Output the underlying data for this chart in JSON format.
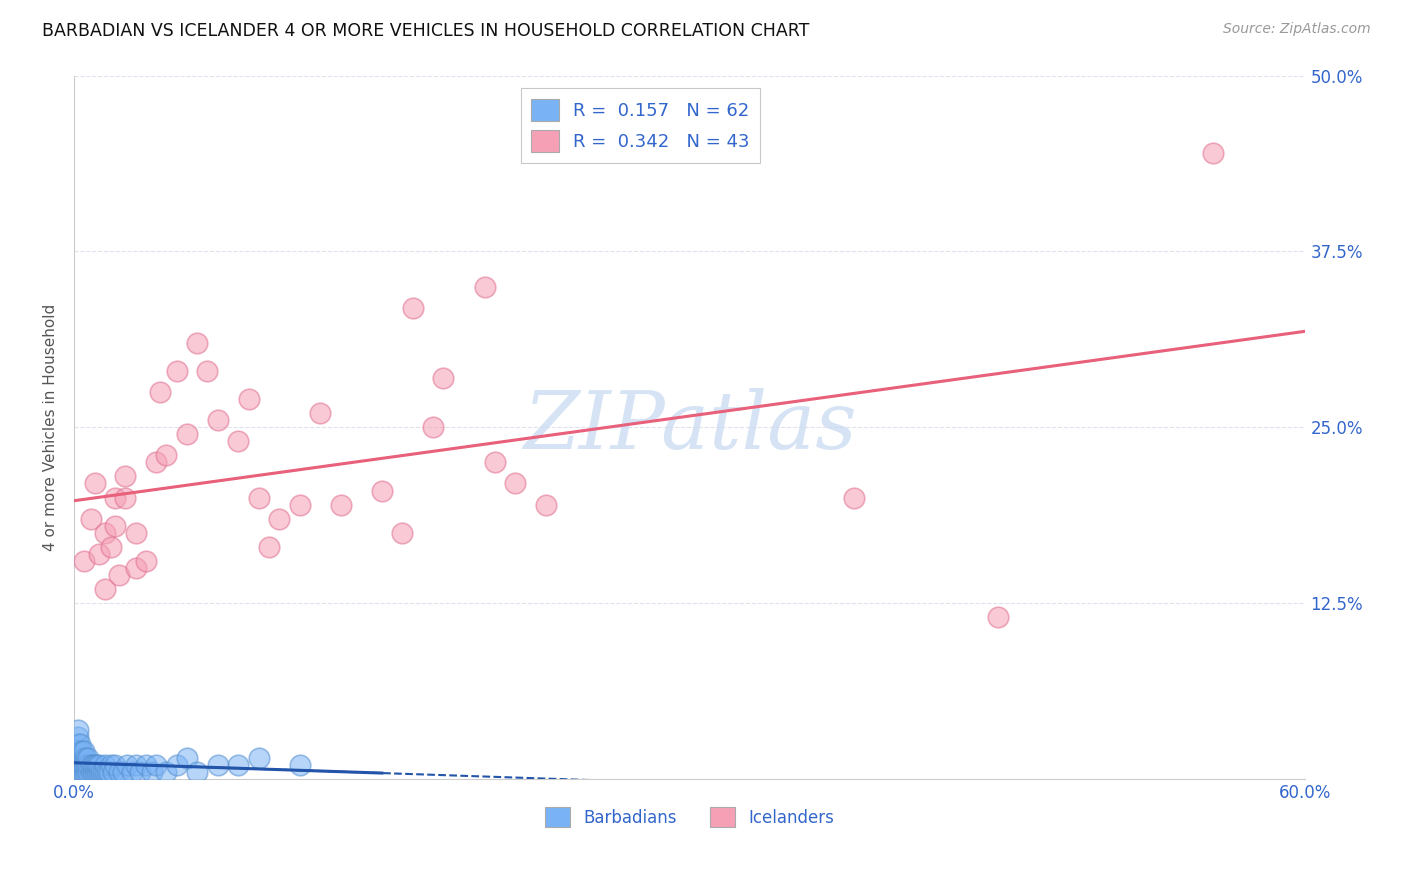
{
  "title": "BARBADIAN VS ICELANDER 4 OR MORE VEHICLES IN HOUSEHOLD CORRELATION CHART",
  "source": "Source: ZipAtlas.com",
  "ylabel": "4 or more Vehicles in Household",
  "xlim": [
    0.0,
    0.6
  ],
  "ylim": [
    0.0,
    0.5
  ],
  "xtick_vals": [
    0.0,
    0.1,
    0.2,
    0.3,
    0.4,
    0.5,
    0.6
  ],
  "xticklabels": [
    "0.0%",
    "",
    "",
    "",
    "",
    "",
    "60.0%"
  ],
  "ytick_vals": [
    0.0,
    0.125,
    0.25,
    0.375,
    0.5
  ],
  "yticklabels_right": [
    "",
    "12.5%",
    "25.0%",
    "37.5%",
    "50.0%"
  ],
  "barbadian_color": "#7ab3f5",
  "barbadian_edge": "#5590d0",
  "icelander_color": "#f5a0b5",
  "icelander_edge": "#e07090",
  "barbadian_line_color": "#2255aa",
  "icelander_line_color": "#e8607a",
  "tick_label_color": "#3366cc",
  "ylabel_color": "#555555",
  "title_color": "#111111",
  "source_color": "#999999",
  "watermark_color": "#c5d8f0",
  "grid_color": "#e0e0ee",
  "legend_label1": "R =  0.157   N = 62",
  "legend_label2": "R =  0.342   N = 43",
  "barb_x": [
    0.001,
    0.001,
    0.001,
    0.002,
    0.002,
    0.002,
    0.002,
    0.003,
    0.003,
    0.003,
    0.003,
    0.003,
    0.004,
    0.004,
    0.004,
    0.004,
    0.005,
    0.005,
    0.005,
    0.005,
    0.006,
    0.006,
    0.006,
    0.007,
    0.007,
    0.007,
    0.008,
    0.008,
    0.009,
    0.009,
    0.01,
    0.01,
    0.011,
    0.011,
    0.012,
    0.012,
    0.013,
    0.014,
    0.015,
    0.015,
    0.016,
    0.017,
    0.018,
    0.019,
    0.02,
    0.022,
    0.024,
    0.026,
    0.028,
    0.03,
    0.032,
    0.035,
    0.038,
    0.04,
    0.045,
    0.05,
    0.055,
    0.06,
    0.07,
    0.08,
    0.09,
    0.11
  ],
  "barb_y": [
    0.005,
    0.01,
    0.015,
    0.02,
    0.025,
    0.03,
    0.035,
    0.005,
    0.01,
    0.015,
    0.02,
    0.025,
    0.005,
    0.01,
    0.015,
    0.02,
    0.005,
    0.01,
    0.015,
    0.02,
    0.005,
    0.01,
    0.015,
    0.005,
    0.01,
    0.015,
    0.005,
    0.01,
    0.005,
    0.01,
    0.005,
    0.01,
    0.005,
    0.01,
    0.005,
    0.01,
    0.005,
    0.005,
    0.005,
    0.01,
    0.005,
    0.005,
    0.01,
    0.005,
    0.01,
    0.005,
    0.005,
    0.01,
    0.005,
    0.01,
    0.005,
    0.01,
    0.005,
    0.01,
    0.005,
    0.01,
    0.015,
    0.005,
    0.01,
    0.01,
    0.015,
    0.01
  ],
  "icel_x": [
    0.005,
    0.008,
    0.01,
    0.012,
    0.015,
    0.015,
    0.018,
    0.02,
    0.02,
    0.022,
    0.025,
    0.025,
    0.03,
    0.03,
    0.035,
    0.04,
    0.042,
    0.045,
    0.05,
    0.055,
    0.06,
    0.065,
    0.07,
    0.08,
    0.085,
    0.09,
    0.095,
    0.1,
    0.11,
    0.12,
    0.13,
    0.15,
    0.16,
    0.165,
    0.175,
    0.18,
    0.2,
    0.205,
    0.215,
    0.23,
    0.38,
    0.45,
    0.555
  ],
  "icel_y": [
    0.155,
    0.185,
    0.21,
    0.16,
    0.175,
    0.135,
    0.165,
    0.2,
    0.18,
    0.145,
    0.2,
    0.215,
    0.175,
    0.15,
    0.155,
    0.225,
    0.275,
    0.23,
    0.29,
    0.245,
    0.31,
    0.29,
    0.255,
    0.24,
    0.27,
    0.2,
    0.165,
    0.185,
    0.195,
    0.26,
    0.195,
    0.205,
    0.175,
    0.335,
    0.25,
    0.285,
    0.35,
    0.225,
    0.21,
    0.195,
    0.2,
    0.115,
    0.445
  ]
}
